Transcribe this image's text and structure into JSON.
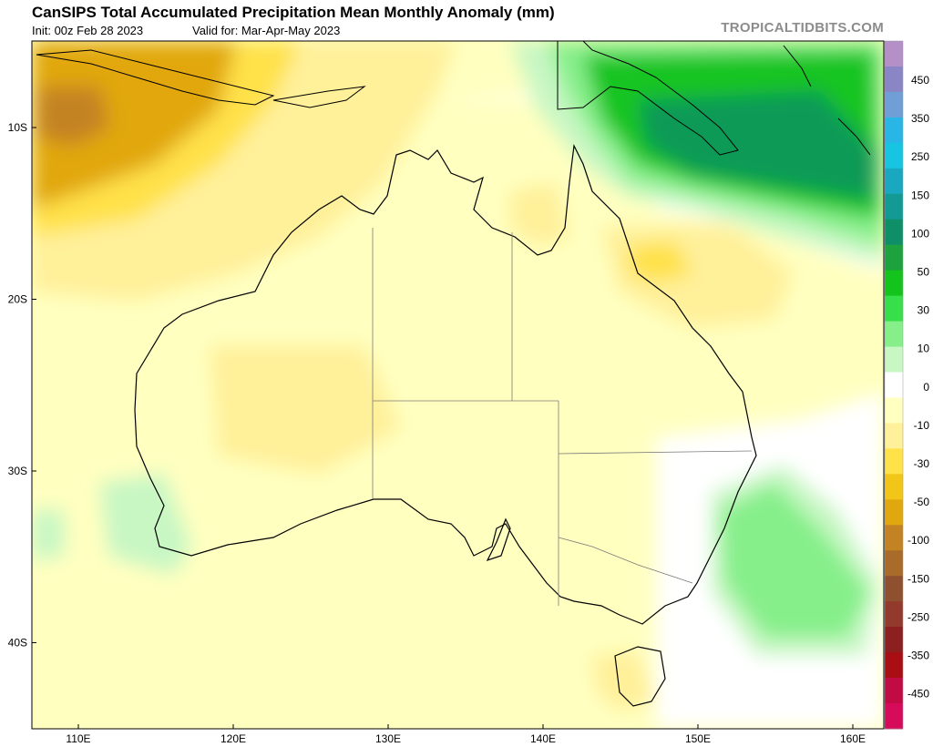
{
  "header": {
    "title": "CanSIPS Total Accumulated Precipitation Mean Monthly Anomaly (mm)",
    "init": "Init: 00z Feb 28 2023",
    "valid": "Valid for: Mar-Apr-May 2023",
    "brand": "TROPICALTIDBITS.COM"
  },
  "axes": {
    "lat_labels": [
      {
        "text": "10S",
        "lat": -10
      },
      {
        "text": "20S",
        "lat": -20
      },
      {
        "text": "30S",
        "lat": -30
      },
      {
        "text": "40S",
        "lat": -40
      }
    ],
    "lon_labels": [
      {
        "text": "110E",
        "lon": 110
      },
      {
        "text": "120E",
        "lon": 120
      },
      {
        "text": "130E",
        "lon": 130
      },
      {
        "text": "140E",
        "lon": 140
      },
      {
        "text": "150E",
        "lon": 150
      },
      {
        "text": "160E",
        "lon": 160
      }
    ]
  },
  "colorbar": {
    "labels": [
      "450",
      "350",
      "250",
      "150",
      "100",
      "50",
      "30",
      "10",
      "0",
      "-10",
      "-30",
      "-50",
      "-100",
      "-150",
      "-250",
      "-350",
      "-450"
    ],
    "colors": [
      "#b590c8",
      "#8a86c6",
      "#6f9fd6",
      "#29b6e6",
      "#17c5e3",
      "#1aa8c0",
      "#139a94",
      "#0e8f67",
      "#1ca33e",
      "#14c41c",
      "#37e04b",
      "#86ef8a",
      "#c8f7c4",
      "#ffffff",
      "#ffffc0",
      "#fff09a",
      "#ffe14a",
      "#f2c519",
      "#e1a70e",
      "#c48322",
      "#a86b2a",
      "#8f5030",
      "#943a2d",
      "#8c1f1f",
      "#a80e14",
      "#c20b45",
      "#d60b5a"
    ]
  },
  "anomaly_colors": {
    "wet_strong": "#0e9a57",
    "wet": "#18c420",
    "wet_light": "#86ef8a",
    "wet_faint": "#c8f7c4",
    "neutral": "#ffffff",
    "dry_faint": "#ffffc0",
    "dry_light": "#fff09a",
    "dry": "#ffe14a",
    "dry_strong": "#e1a70e",
    "dry_very": "#c48322"
  }
}
